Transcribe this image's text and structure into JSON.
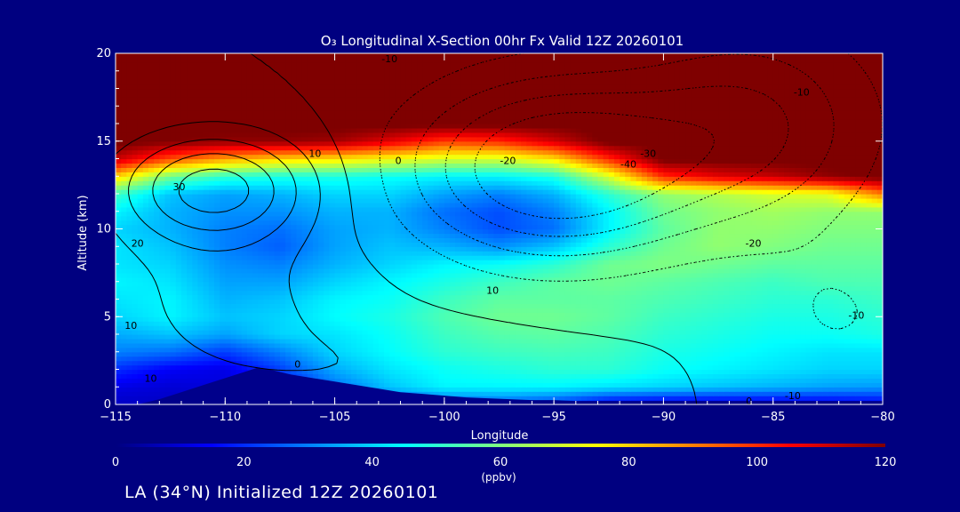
{
  "chart_data": {
    "type": "heatmap",
    "title": "O₃ Longitudinal X-Section 00hr  Fx Valid 12Z 20260101",
    "xlabel": "Longitude",
    "ylabel": "Altitude (km)",
    "xlim": [
      -115,
      -80
    ],
    "ylim": [
      0,
      20
    ],
    "x_ticks": [
      "−115",
      "−110",
      "−105",
      "−100",
      "−95",
      "−90",
      "−85",
      "−80"
    ],
    "y_ticks": [
      "0",
      "5",
      "10",
      "15",
      "20"
    ],
    "colorbar": {
      "label": "(ppbv)",
      "range": [
        0,
        120
      ],
      "ticks": [
        "0",
        "20",
        "40",
        "60",
        "80",
        "100",
        "120"
      ],
      "colors": [
        "#00007f",
        "#0000ff",
        "#0080ff",
        "#00ffff",
        "#80ff80",
        "#ffff00",
        "#ff8000",
        "#ff0000",
        "#7f0000"
      ]
    },
    "ozone_field_ppbv": {
      "longitudes": [
        -115,
        -112.5,
        -110,
        -107.5,
        -105,
        -102.5,
        -100,
        -97.5,
        -95,
        -92.5,
        -90,
        -87.5,
        -85,
        -82.5,
        -80
      ],
      "altitudes_km": [
        0,
        1,
        2,
        3,
        4,
        5,
        6,
        7,
        8,
        9,
        10,
        11,
        12,
        13,
        14,
        15,
        16,
        17,
        18,
        19,
        20
      ],
      "rows": [
        [
          8,
          8,
          9,
          10,
          14,
          20,
          23,
          25,
          20,
          10,
          8,
          8,
          9,
          10,
          12
        ],
        [
          12,
          10,
          11,
          15,
          28,
          38,
          44,
          44,
          44,
          42,
          40,
          38,
          36,
          34,
          33
        ],
        [
          20,
          14,
          12,
          22,
          35,
          42,
          46,
          48,
          50,
          50,
          46,
          44,
          42,
          40,
          40
        ],
        [
          30,
          28,
          22,
          30,
          40,
          45,
          50,
          52,
          53,
          52,
          48,
          46,
          44,
          42,
          42
        ],
        [
          35,
          38,
          34,
          40,
          42,
          46,
          52,
          55,
          56,
          54,
          50,
          48,
          46,
          46,
          48
        ],
        [
          40,
          44,
          38,
          40,
          45,
          48,
          54,
          58,
          58,
          56,
          52,
          50,
          48,
          48,
          50
        ],
        [
          42,
          44,
          36,
          38,
          44,
          46,
          52,
          56,
          56,
          56,
          54,
          52,
          50,
          50,
          52
        ],
        [
          44,
          42,
          34,
          34,
          40,
          44,
          48,
          52,
          56,
          58,
          56,
          54,
          52,
          54,
          54
        ],
        [
          42,
          40,
          32,
          30,
          36,
          40,
          44,
          46,
          50,
          58,
          60,
          58,
          56,
          56,
          56
        ],
        [
          42,
          38,
          30,
          26,
          34,
          38,
          36,
          32,
          38,
          50,
          58,
          62,
          60,
          58,
          58
        ],
        [
          40,
          36,
          30,
          28,
          34,
          36,
          30,
          24,
          28,
          44,
          56,
          62,
          62,
          60,
          60
        ],
        [
          44,
          36,
          32,
          32,
          36,
          36,
          28,
          24,
          30,
          44,
          58,
          62,
          64,
          62,
          62
        ],
        [
          52,
          38,
          34,
          36,
          40,
          40,
          34,
          30,
          36,
          50,
          62,
          66,
          70,
          72,
          90
        ],
        [
          80,
          58,
          50,
          48,
          48,
          46,
          44,
          44,
          48,
          70,
          100,
          108,
          112,
          118,
          122
        ],
        [
          112,
          96,
          86,
          80,
          78,
          74,
          70,
          70,
          78,
          100,
          122,
          122,
          122,
          122,
          122
        ],
        [
          122,
          120,
          118,
          118,
          116,
          108,
          98,
          100,
          110,
          122,
          122,
          122,
          122,
          122,
          122
        ],
        [
          122,
          122,
          122,
          122,
          122,
          122,
          122,
          122,
          122,
          122,
          122,
          122,
          122,
          122,
          122
        ],
        [
          122,
          122,
          122,
          122,
          122,
          122,
          122,
          122,
          122,
          122,
          122,
          122,
          122,
          122,
          122
        ],
        [
          122,
          122,
          122,
          122,
          122,
          122,
          122,
          122,
          122,
          122,
          122,
          122,
          122,
          122,
          122
        ],
        [
          122,
          122,
          122,
          122,
          122,
          122,
          122,
          122,
          122,
          122,
          122,
          122,
          122,
          122,
          122
        ],
        [
          122,
          122,
          122,
          122,
          122,
          122,
          122,
          122,
          122,
          122,
          122,
          122,
          122,
          122,
          122
        ]
      ]
    },
    "terrain_km": {
      "longitudes": [
        -115,
        -114,
        -113,
        -112,
        -111,
        -110,
        -109,
        -108.5,
        -108,
        -107,
        -106,
        -105,
        -104,
        -103,
        -102,
        -101,
        -100,
        -99,
        -98,
        -97,
        -96,
        -95,
        -94,
        -93,
        -92,
        -91,
        -90,
        -89,
        -88,
        -87,
        -86,
        -85,
        -84,
        -83,
        -82,
        -81,
        -80
      ],
      "heights": [
        0,
        0,
        0.3,
        0.7,
        1.1,
        1.5,
        1.9,
        2.1,
        2.0,
        1.7,
        1.5,
        1.3,
        1.1,
        0.9,
        0.7,
        0.6,
        0.5,
        0.4,
        0.35,
        0.3,
        0.25,
        0.25,
        0.2,
        0.2,
        0.2,
        0.2,
        0.2,
        0.2,
        0.2,
        0.2,
        0.2,
        0.2,
        0.2,
        0.2,
        0.2,
        0.2,
        0.2
      ]
    },
    "contour_style": "solid lines positive, dotted lines negative",
    "contour_labels": [
      {
        "text": "-10",
        "lon": -102.5,
        "alt": 19.7
      },
      {
        "text": "-10",
        "lon": -83.7,
        "alt": 17.8
      },
      {
        "text": "-30",
        "lon": -90.7,
        "alt": 14.3
      },
      {
        "text": "-40",
        "lon": -91.6,
        "alt": 13.7
      },
      {
        "text": "-20",
        "lon": -97.1,
        "alt": 13.9
      },
      {
        "text": "10",
        "lon": -105.9,
        "alt": 14.3
      },
      {
        "text": "0",
        "lon": -102.1,
        "alt": 13.9
      },
      {
        "text": "30",
        "lon": -112.1,
        "alt": 12.4
      },
      {
        "text": "20",
        "lon": -114.0,
        "alt": 9.2
      },
      {
        "text": "-20",
        "lon": -85.9,
        "alt": 9.2
      },
      {
        "text": "10",
        "lon": -97.8,
        "alt": 6.5
      },
      {
        "text": "10",
        "lon": -114.3,
        "alt": 4.5
      },
      {
        "text": "-10",
        "lon": -81.2,
        "alt": 5.1
      },
      {
        "text": "0",
        "lon": -106.7,
        "alt": 2.3
      },
      {
        "text": "10",
        "lon": -113.4,
        "alt": 1.5
      },
      {
        "text": "-10",
        "lon": -84.1,
        "alt": 0.5
      },
      {
        "text": "0",
        "lon": -86.1,
        "alt": 0.2
      }
    ]
  },
  "caption": "LA (34°N) Initialized 12Z 20260101"
}
